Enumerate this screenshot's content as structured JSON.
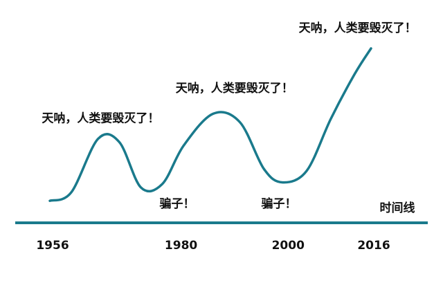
{
  "chart_data": {
    "type": "line",
    "title": "",
    "xlabel": "时间线",
    "ylabel": "",
    "grid": false,
    "legend": "none",
    "line_color": "#1a7a8c",
    "axis_color": "#1a7a8c",
    "xlim": [
      1956,
      2024
    ],
    "ylim": [
      0,
      100
    ],
    "x_ticks": [
      {
        "value": 1956,
        "label": "1956"
      },
      {
        "value": 1980,
        "label": "1980"
      },
      {
        "value": 2000,
        "label": "2000"
      },
      {
        "value": 2016,
        "label": "2016"
      }
    ],
    "series": [
      {
        "points": [
          {
            "x": 1956.0,
            "y": 9
          },
          {
            "x": 1960.0,
            "y": 14
          },
          {
            "x": 1965.0,
            "y": 46
          },
          {
            "x": 1969.0,
            "y": 44
          },
          {
            "x": 1973.0,
            "y": 17
          },
          {
            "x": 1977.0,
            "y": 19
          },
          {
            "x": 1981.0,
            "y": 42
          },
          {
            "x": 1986.5,
            "y": 61
          },
          {
            "x": 1991.5,
            "y": 56
          },
          {
            "x": 1996.0,
            "y": 28
          },
          {
            "x": 1999.5,
            "y": 20
          },
          {
            "x": 2004.0,
            "y": 27
          },
          {
            "x": 2008.5,
            "y": 58
          },
          {
            "x": 2013.0,
            "y": 85
          },
          {
            "x": 2016.0,
            "y": 100
          }
        ]
      }
    ],
    "annotations": [
      {
        "text": "天呐，人类要毁灭了！",
        "x": 1954.5,
        "y": 56
      },
      {
        "text": "骗子！",
        "x": 1976.5,
        "y": 5
      },
      {
        "text": "天呐，人类要毁灭了！",
        "x": 1979.5,
        "y": 74
      },
      {
        "text": "骗子！",
        "x": 1995.5,
        "y": 5
      },
      {
        "text": "天呐，人类要毁灭了！",
        "x": 2002.5,
        "y": 110
      }
    ]
  }
}
